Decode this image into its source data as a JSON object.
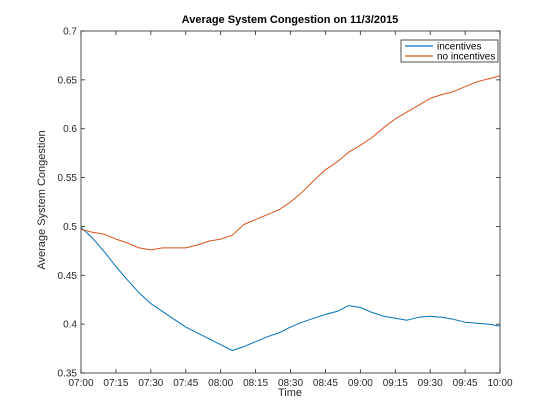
{
  "chart_data": {
    "type": "line",
    "title": "Average System Congestion on 11/3/2015",
    "xlabel": "Time",
    "ylabel": "Average System Congestion",
    "ylim": [
      0.35,
      0.7
    ],
    "yticks": [
      "0.35",
      "0.4",
      "0.45",
      "0.5",
      "0.55",
      "0.6",
      "0.65",
      "0.7"
    ],
    "xticks": [
      "07:00",
      "07:15",
      "07:30",
      "07:45",
      "08:00",
      "08:15",
      "08:30",
      "08:45",
      "09:00",
      "09:15",
      "09:30",
      "09:45",
      "10:00"
    ],
    "grid": false,
    "legend_position": "top-right",
    "x": [
      "07:00",
      "07:05",
      "07:10",
      "07:15",
      "07:20",
      "07:25",
      "07:30",
      "07:35",
      "07:40",
      "07:45",
      "07:50",
      "07:55",
      "08:00",
      "08:05",
      "08:10",
      "08:15",
      "08:20",
      "08:25",
      "08:30",
      "08:35",
      "08:40",
      "08:45",
      "08:50",
      "08:55",
      "09:00",
      "09:05",
      "09:10",
      "09:15",
      "09:20",
      "09:25",
      "09:30",
      "09:35",
      "09:40",
      "09:45",
      "09:50",
      "09:55",
      "10:00"
    ],
    "series": [
      {
        "name": "incentives",
        "color": "#0072BD",
        "values": [
          0.499,
          0.488,
          0.474,
          0.459,
          0.445,
          0.432,
          0.421,
          0.413,
          0.405,
          0.397,
          0.391,
          0.385,
          0.379,
          0.373,
          0.377,
          0.382,
          0.387,
          0.391,
          0.397,
          0.402,
          0.406,
          0.41,
          0.413,
          0.419,
          0.417,
          0.412,
          0.408,
          0.406,
          0.404,
          0.407,
          0.408,
          0.407,
          0.405,
          0.402,
          0.401,
          0.4,
          0.398
        ]
      },
      {
        "name": "no incentives",
        "color": "#D95319",
        "values": [
          0.497,
          0.494,
          0.492,
          0.487,
          0.483,
          0.478,
          0.476,
          0.478,
          0.478,
          0.478,
          0.481,
          0.485,
          0.487,
          0.491,
          0.502,
          0.507,
          0.512,
          0.517,
          0.525,
          0.535,
          0.547,
          0.558,
          0.566,
          0.576,
          0.583,
          0.591,
          0.601,
          0.61,
          0.617,
          0.624,
          0.631,
          0.635,
          0.638,
          0.643,
          0.648,
          0.651,
          0.654
        ]
      }
    ]
  }
}
